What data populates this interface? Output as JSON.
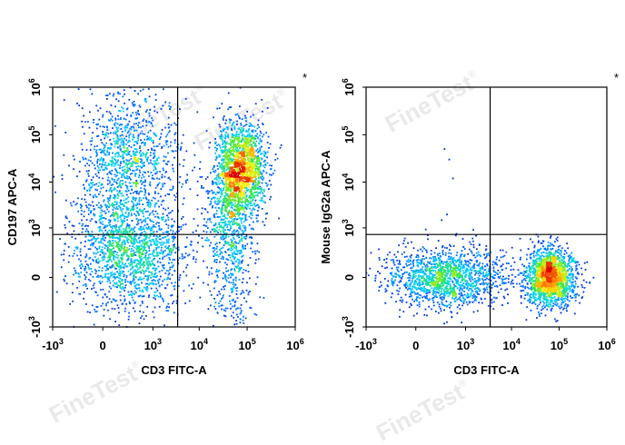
{
  "watermark": {
    "text": "FineTest",
    "mark": "®"
  },
  "chart_data": [
    {
      "type": "scatter",
      "style": "density-colored flow cytometry dot plot",
      "xlabel": "CD3 FITC-A",
      "ylabel": "CD197 APC-A",
      "corner_mark": "*",
      "x_scale": "biexponential",
      "y_scale": "biexponential",
      "xlim": [
        -1000,
        1000000
      ],
      "ylim": [
        -1000,
        1000000
      ],
      "x_ticks": [
        {
          "base": "-10",
          "exp": "3"
        },
        {
          "base": "0",
          "exp": ""
        },
        {
          "base": "10",
          "exp": "3"
        },
        {
          "base": "10",
          "exp": "4"
        },
        {
          "base": "10",
          "exp": "5"
        },
        {
          "base": "10",
          "exp": "6"
        }
      ],
      "y_ticks": [
        {
          "base": "-10",
          "exp": "3"
        },
        {
          "base": "0",
          "exp": ""
        },
        {
          "base": "10",
          "exp": "3"
        },
        {
          "base": "10",
          "exp": "4"
        },
        {
          "base": "10",
          "exp": "5"
        },
        {
          "base": "10",
          "exp": "6"
        }
      ],
      "gates": {
        "x": 3500,
        "y": 700
      },
      "populations": [
        {
          "x": 250,
          "y": 250,
          "sx": 0.12,
          "sy": 0.11,
          "n": 1300
        },
        {
          "x": 250,
          "y": 30000,
          "sx": 0.11,
          "sy": 0.1,
          "n": 650
        },
        {
          "x": 250,
          "y": 4000,
          "sx": 0.11,
          "sy": 0.3,
          "n": 900
        },
        {
          "x": 80000,
          "y": 22000,
          "sx": 0.05,
          "sy": 0.09,
          "n": 1300
        },
        {
          "x": 45000,
          "y": 4000,
          "sx": 0.05,
          "sy": 0.14,
          "n": 700
        },
        {
          "x": 50000,
          "y": 300,
          "sx": 0.05,
          "sy": 0.22,
          "n": 500
        }
      ]
    },
    {
      "type": "scatter",
      "style": "density-colored flow cytometry dot plot",
      "xlabel": "CD3 FITC-A",
      "ylabel": "Mouse IgG2a APC-A",
      "corner_mark": "*",
      "x_scale": "biexponential",
      "y_scale": "biexponential",
      "xlim": [
        -1000,
        1000000
      ],
      "ylim": [
        -1000,
        1000000
      ],
      "x_ticks": [
        {
          "base": "-10",
          "exp": "3"
        },
        {
          "base": "0",
          "exp": ""
        },
        {
          "base": "10",
          "exp": "3"
        },
        {
          "base": "10",
          "exp": "4"
        },
        {
          "base": "10",
          "exp": "5"
        },
        {
          "base": "10",
          "exp": "6"
        }
      ],
      "y_ticks": [
        {
          "base": "-10",
          "exp": "3"
        },
        {
          "base": "0",
          "exp": ""
        },
        {
          "base": "10",
          "exp": "3"
        },
        {
          "base": "10",
          "exp": "4"
        },
        {
          "base": "10",
          "exp": "5"
        },
        {
          "base": "10",
          "exp": "6"
        }
      ],
      "gates": {
        "x": 3500,
        "y": 700
      },
      "populations": [
        {
          "x": 350,
          "y": 0,
          "sx": 0.12,
          "sy": 0.06,
          "n": 1500
        },
        {
          "x": 65000,
          "y": 0,
          "sx": 0.05,
          "sy": 0.06,
          "n": 1700
        }
      ],
      "outliers": [
        {
          "x": 300,
          "y": 50000
        },
        {
          "x": 400,
          "y": 30000
        },
        {
          "x": 500,
          "y": 12000
        },
        {
          "x": 350,
          "y": 2000
        },
        {
          "x": 250,
          "y": 1500
        },
        {
          "x": 1500,
          "y": 900
        }
      ]
    }
  ]
}
